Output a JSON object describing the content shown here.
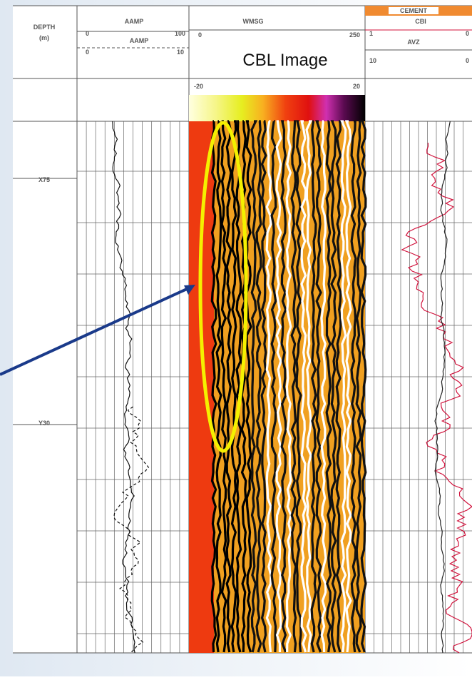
{
  "header": {
    "depth": {
      "title": "DEPTH",
      "unit": "(m)"
    },
    "aamp": {
      "title": "AAMP",
      "scale1": [
        "0",
        "100"
      ],
      "curve2": "AAMP",
      "scale2": [
        "0",
        "10"
      ]
    },
    "wmsg": {
      "title": "WMSG",
      "scale": [
        "0",
        "250"
      ],
      "label": "CBL Image",
      "color_scale": [
        "-20",
        "20"
      ]
    },
    "cement": {
      "title": "CEMENT",
      "curve1": "CBI",
      "scale1": [
        "1",
        "0"
      ],
      "curve2": "AVZ",
      "scale2": [
        "10",
        "0"
      ]
    }
  },
  "depths": [
    "X75",
    "Y30"
  ]
}
